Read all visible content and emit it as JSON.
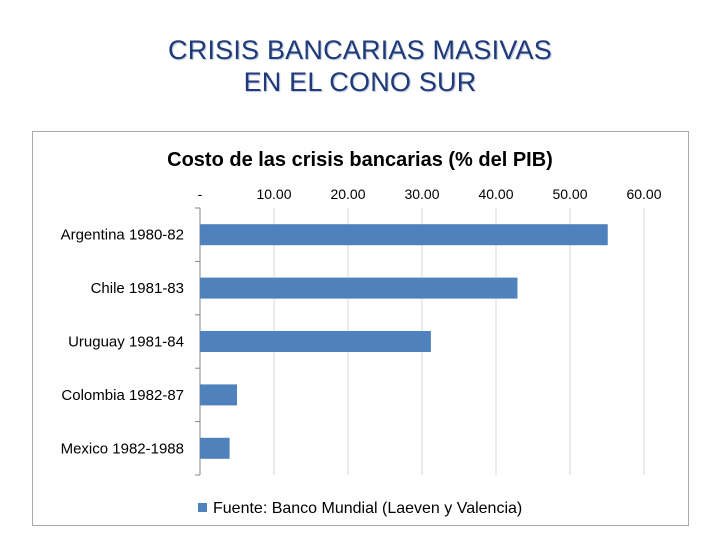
{
  "slide": {
    "title_line1": "CRISIS BANCARIAS MASIVAS",
    "title_line2": "EN EL CONO SUR"
  },
  "chart_data": {
    "type": "bar",
    "orientation": "horizontal",
    "title": "Costo de las crisis bancarias (% del PIB)",
    "categories": [
      "Argentina 1980-82",
      "Chile 1981-83",
      "Uruguay 1981-84",
      "Colombia 1982-87",
      "Mexico 1982-1988"
    ],
    "series": [
      {
        "name": "Fuente: Banco Mundial (Laeven y Valencia)",
        "values": [
          55.1,
          42.9,
          31.2,
          5.0,
          4.0
        ]
      }
    ],
    "xticks": [
      "-",
      "10.00",
      "20.00",
      "30.00",
      "40.00",
      "50.00",
      "60.00"
    ],
    "xlim": [
      0,
      64
    ],
    "xaxis_position": "top",
    "grid": true,
    "legend_position": "bottom",
    "colors": {
      "bar": "#4f81bd",
      "grid": "#d9d9d9",
      "axis": "#868686"
    }
  }
}
